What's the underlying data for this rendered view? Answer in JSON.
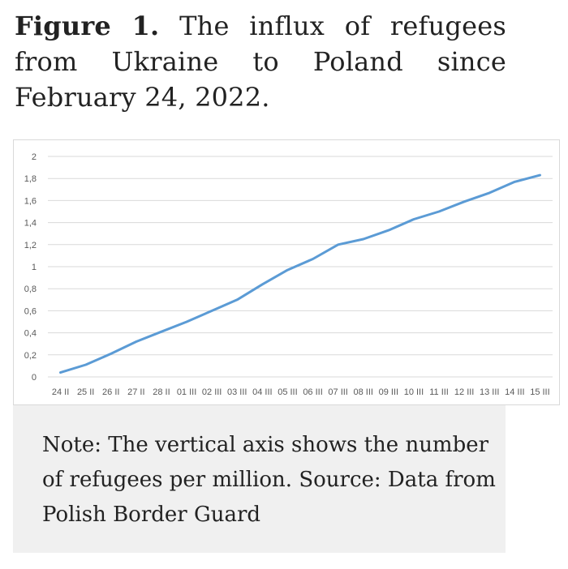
{
  "caption": {
    "label": "Figure 1.",
    "text": "The influx of refugees from Ukraine to Poland since February 24, 2022."
  },
  "note": {
    "text": "Note: The vertical axis shows the number of refugees per million. Source: Data from Polish Border Guard"
  },
  "colors": {
    "line": "#5b9bd5",
    "grid": "#d9d9d9",
    "note_background": "#f0f0f0"
  },
  "chart_data": {
    "type": "line",
    "title": "",
    "xlabel": "",
    "ylabel": "",
    "categories": [
      "24 II",
      "25 II",
      "26 II",
      "27 II",
      "28 II",
      "01 III",
      "02 III",
      "03 III",
      "04 III",
      "05 III",
      "06 III",
      "07 III",
      "08 III",
      "09 III",
      "10 III",
      "11 III",
      "12 III",
      "13 III",
      "14 III",
      "15 III"
    ],
    "y_tick_labels": [
      "0",
      "0,2",
      "0,4",
      "0,6",
      "0,8",
      "1",
      "1,2",
      "1,4",
      "1,6",
      "1,8",
      "2"
    ],
    "ylim": [
      0,
      2
    ],
    "grid": true,
    "legend": "none",
    "series": [
      {
        "values": [
          0.04,
          0.11,
          0.21,
          0.32,
          0.41,
          0.5,
          0.6,
          0.7,
          0.84,
          0.97,
          1.07,
          1.2,
          1.25,
          1.33,
          1.43,
          1.5,
          1.59,
          1.67,
          1.77,
          1.83
        ]
      }
    ]
  }
}
